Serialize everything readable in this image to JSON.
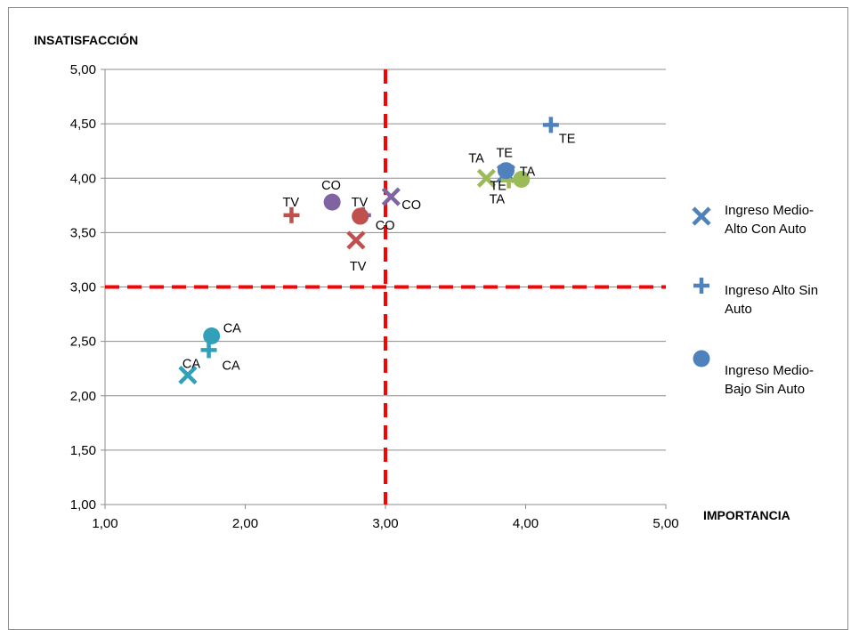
{
  "chart_data": {
    "type": "scatter",
    "ylabel": "INSATISFACCIÓN",
    "xlabel": "IMPORTANCIA",
    "xlim": [
      1,
      5
    ],
    "ylim": [
      1,
      5
    ],
    "x_ticks": [
      "1,00",
      "2,00",
      "3,00",
      "4,00",
      "5,00"
    ],
    "y_ticks": [
      "1,00",
      "1,50",
      "2,00",
      "2,50",
      "3,00",
      "3,50",
      "4,00",
      "4,50",
      "5,00"
    ],
    "reference_lines": {
      "x": 3.0,
      "y": 3.0,
      "color": "#ff0000",
      "style": "dashed"
    },
    "grid": "horizontal",
    "legend_position": "right",
    "legend": [
      {
        "marker": "x",
        "text_lines": [
          "Ingreso Medio-",
          "Alto Con Auto"
        ],
        "color": "#4f81bd"
      },
      {
        "marker": "plus",
        "text_lines": [
          "Ingreso Alto Sin",
          "Auto"
        ],
        "color": "#4f81bd"
      },
      {
        "marker": "circle",
        "text_lines": [
          "Ingreso Medio-",
          "Bajo Sin Auto"
        ],
        "color": "#4f81bd"
      }
    ],
    "points": [
      {
        "marker": "x",
        "x": 1.59,
        "y": 2.19,
        "label": "CA",
        "color": "#31a0b8"
      },
      {
        "marker": "x",
        "x": 2.79,
        "y": 3.43,
        "label": "TV",
        "color": "#c0504d"
      },
      {
        "marker": "x",
        "x": 3.04,
        "y": 3.83,
        "label": "CO",
        "color": "#8064a2"
      },
      {
        "marker": "x",
        "x": 3.72,
        "y": 4.0,
        "label": "TA",
        "color": "#9bbb59"
      },
      {
        "marker": "x",
        "x": 3.86,
        "y": 4.04,
        "label": "TE",
        "color": "#4f81bd"
      },
      {
        "marker": "plus",
        "x": 1.74,
        "y": 2.42,
        "label": "CA",
        "color": "#31a0b8"
      },
      {
        "marker": "plus",
        "x": 2.33,
        "y": 3.66,
        "label": "TV",
        "color": "#c0504d"
      },
      {
        "marker": "plus",
        "x": 2.84,
        "y": 3.66,
        "label": "CO",
        "color": "#8064a2"
      },
      {
        "marker": "plus",
        "x": 3.88,
        "y": 3.98,
        "label": "TA",
        "color": "#9bbb59"
      },
      {
        "marker": "plus",
        "x": 4.18,
        "y": 4.49,
        "label": "TE",
        "color": "#4f81bd"
      },
      {
        "marker": "circle",
        "x": 1.76,
        "y": 2.55,
        "label": "CA",
        "color": "#31a0b8"
      },
      {
        "marker": "circle",
        "x": 2.82,
        "y": 3.65,
        "label": "TV",
        "color": "#c0504d"
      },
      {
        "marker": "circle",
        "x": 2.62,
        "y": 3.78,
        "label": "CO",
        "color": "#8064a2"
      },
      {
        "marker": "circle",
        "x": 3.97,
        "y": 3.99,
        "label": "TA",
        "color": "#9bbb59"
      },
      {
        "marker": "circle",
        "x": 3.86,
        "y": 4.07,
        "label": "TE",
        "color": "#4f81bd"
      }
    ]
  }
}
